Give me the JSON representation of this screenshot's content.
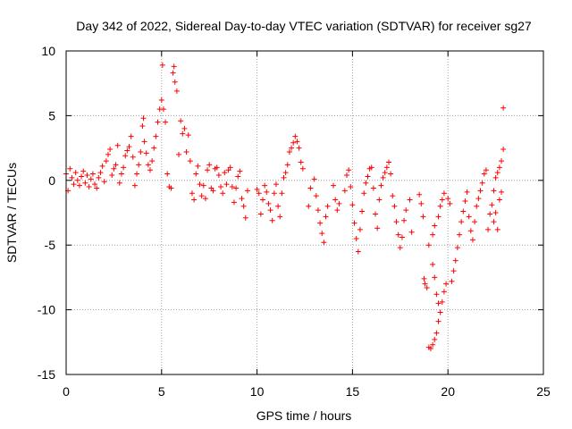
{
  "chart_data": {
    "type": "scatter",
    "title": "Day 342 of 2022, Sidereal Day-to-day VTEC variation (SDTVAR) for receiver sg27",
    "xlabel": "GPS time / hours",
    "ylabel": "SDTVAR / TECUs",
    "xlim": [
      0,
      25
    ],
    "ylim": [
      -15,
      10
    ],
    "xticks": [
      0,
      5,
      10,
      15,
      20,
      25
    ],
    "yticks": [
      -15,
      -10,
      -5,
      0,
      5,
      10
    ],
    "xtick_labels": [
      "0",
      "5",
      "10",
      "15",
      "20",
      "25"
    ],
    "ytick_labels": [
      "-15",
      "-10",
      "-5",
      "0",
      "5",
      "10"
    ],
    "grid": true,
    "marker": "+",
    "color": "#ff0000",
    "series": [
      {
        "name": "SDTVAR",
        "points": [
          [
            0.0,
            0.5
          ],
          [
            0.1,
            -0.8
          ],
          [
            0.2,
            0.9
          ],
          [
            0.3,
            0.2
          ],
          [
            0.4,
            -0.3
          ],
          [
            0.5,
            0.6
          ],
          [
            0.6,
            0.0
          ],
          [
            0.7,
            -0.4
          ],
          [
            0.8,
            0.3
          ],
          [
            0.9,
            0.7
          ],
          [
            1.0,
            -0.2
          ],
          [
            1.1,
            0.4
          ],
          [
            1.2,
            -0.5
          ],
          [
            1.3,
            0.1
          ],
          [
            1.4,
            0.5
          ],
          [
            1.5,
            -0.3
          ],
          [
            1.6,
            -0.6
          ],
          [
            1.7,
            0.2
          ],
          [
            1.8,
            0.6
          ],
          [
            1.9,
            1.1
          ],
          [
            2.0,
            -0.1
          ],
          [
            2.1,
            1.5
          ],
          [
            2.2,
            2.0
          ],
          [
            2.3,
            2.4
          ],
          [
            2.4,
            0.4
          ],
          [
            2.5,
            0.9
          ],
          [
            2.6,
            1.2
          ],
          [
            2.7,
            2.7
          ],
          [
            2.8,
            -0.2
          ],
          [
            2.9,
            0.5
          ],
          [
            3.0,
            1.0
          ],
          [
            3.1,
            1.9
          ],
          [
            3.2,
            2.3
          ],
          [
            3.3,
            2.6
          ],
          [
            3.4,
            3.4
          ],
          [
            3.5,
            1.8
          ],
          [
            3.6,
            -0.4
          ],
          [
            3.7,
            0.5
          ],
          [
            3.8,
            1.2
          ],
          [
            3.9,
            2.2
          ],
          [
            4.0,
            4.2
          ],
          [
            4.05,
            4.8
          ],
          [
            4.1,
            3.0
          ],
          [
            4.2,
            2.1
          ],
          [
            4.3,
            1.2
          ],
          [
            4.4,
            0.8
          ],
          [
            4.5,
            1.5
          ],
          [
            4.6,
            2.5
          ],
          [
            4.7,
            3.4
          ],
          [
            4.8,
            4.5
          ],
          [
            4.9,
            5.5
          ],
          [
            5.0,
            6.2
          ],
          [
            5.05,
            8.9
          ],
          [
            5.1,
            5.5
          ],
          [
            5.2,
            4.5
          ],
          [
            5.3,
            0.5
          ],
          [
            5.4,
            -0.5
          ],
          [
            5.5,
            -0.6
          ],
          [
            5.6,
            8.3
          ],
          [
            5.65,
            8.8
          ],
          [
            5.7,
            7.6
          ],
          [
            5.8,
            6.9
          ],
          [
            5.9,
            2.0
          ],
          [
            6.0,
            4.6
          ],
          [
            6.1,
            3.6
          ],
          [
            6.2,
            4.0
          ],
          [
            6.3,
            2.2
          ],
          [
            6.4,
            3.5
          ],
          [
            6.5,
            1.5
          ],
          [
            6.6,
            -1.0
          ],
          [
            6.7,
            -1.5
          ],
          [
            6.8,
            0.5
          ],
          [
            6.9,
            1.1
          ],
          [
            7.0,
            -0.3
          ],
          [
            7.1,
            -1.2
          ],
          [
            7.2,
            -0.4
          ],
          [
            7.3,
            -1.4
          ],
          [
            7.4,
            0.8
          ],
          [
            7.5,
            1.2
          ],
          [
            7.6,
            -0.6
          ],
          [
            7.7,
            -0.8
          ],
          [
            7.8,
            0.9
          ],
          [
            7.9,
            1.0
          ],
          [
            8.0,
            0.4
          ],
          [
            8.1,
            -0.5
          ],
          [
            8.2,
            -1.0
          ],
          [
            8.3,
            0.6
          ],
          [
            8.4,
            -0.3
          ],
          [
            8.5,
            0.8
          ],
          [
            8.6,
            1.0
          ],
          [
            8.7,
            -0.5
          ],
          [
            8.8,
            -1.7
          ],
          [
            8.9,
            -0.6
          ],
          [
            9.0,
            0.3
          ],
          [
            9.1,
            0.7
          ],
          [
            9.2,
            -1.4
          ],
          [
            9.3,
            -2.0
          ],
          [
            9.4,
            -2.9
          ],
          [
            9.5,
            -0.8
          ],
          [
            10.0,
            -0.7
          ],
          [
            10.1,
            -1.0
          ],
          [
            10.2,
            -2.6
          ],
          [
            10.3,
            -1.5
          ],
          [
            10.4,
            -0.4
          ],
          [
            10.5,
            -0.9
          ],
          [
            10.6,
            -1.8
          ],
          [
            10.7,
            -2.3
          ],
          [
            10.8,
            -3.1
          ],
          [
            10.9,
            -1.0
          ],
          [
            11.0,
            -0.3
          ],
          [
            11.1,
            -2.0
          ],
          [
            11.2,
            -2.8
          ],
          [
            11.3,
            -1.0
          ],
          [
            11.4,
            0.2
          ],
          [
            11.5,
            0.6
          ],
          [
            11.6,
            1.2
          ],
          [
            11.7,
            2.2
          ],
          [
            11.8,
            2.5
          ],
          [
            11.9,
            2.9
          ],
          [
            12.0,
            3.4
          ],
          [
            12.1,
            3.0
          ],
          [
            12.2,
            2.5
          ],
          [
            12.3,
            1.4
          ],
          [
            12.4,
            0.9
          ],
          [
            12.7,
            -2.0
          ],
          [
            12.8,
            -0.6
          ],
          [
            13.0,
            0.1
          ],
          [
            13.1,
            -1.2
          ],
          [
            13.2,
            -2.3
          ],
          [
            13.3,
            -3.3
          ],
          [
            13.4,
            -4.1
          ],
          [
            13.5,
            -4.8
          ],
          [
            13.6,
            -2.8
          ],
          [
            13.7,
            -2.0
          ],
          [
            14.0,
            -0.4
          ],
          [
            14.1,
            -1.5
          ],
          [
            14.2,
            -2.3
          ],
          [
            14.3,
            -1.8
          ],
          [
            14.6,
            -0.8
          ],
          [
            14.7,
            0.4
          ],
          [
            14.8,
            0.8
          ],
          [
            14.9,
            -0.5
          ],
          [
            15.0,
            -1.9
          ],
          [
            15.1,
            -3.3
          ],
          [
            15.2,
            -4.5
          ],
          [
            15.3,
            -5.5
          ],
          [
            15.4,
            -3.8
          ],
          [
            15.5,
            -2.4
          ],
          [
            15.6,
            -1.0
          ],
          [
            15.7,
            -0.2
          ],
          [
            15.8,
            0.3
          ],
          [
            15.9,
            0.9
          ],
          [
            16.0,
            1.0
          ],
          [
            16.1,
            -0.6
          ],
          [
            16.2,
            -2.6
          ],
          [
            16.3,
            -3.7
          ],
          [
            16.4,
            -1.5
          ],
          [
            16.5,
            -0.4
          ],
          [
            16.6,
            0.2
          ],
          [
            16.7,
            0.6
          ],
          [
            16.8,
            1.0
          ],
          [
            16.9,
            1.4
          ],
          [
            17.0,
            0.5
          ],
          [
            17.1,
            -1.2
          ],
          [
            17.2,
            -2.0
          ],
          [
            17.3,
            -3.2
          ],
          [
            17.4,
            -4.2
          ],
          [
            17.5,
            -5.2
          ],
          [
            17.6,
            -4.4
          ],
          [
            17.7,
            -3.1
          ],
          [
            17.8,
            -2.3
          ],
          [
            18.0,
            -1.5
          ],
          [
            18.1,
            -4.0
          ],
          [
            18.5,
            -1.1
          ],
          [
            18.6,
            -1.8
          ],
          [
            18.7,
            -2.8
          ],
          [
            18.75,
            -7.6
          ],
          [
            18.8,
            -8.0
          ],
          [
            18.9,
            -8.3
          ],
          [
            19.0,
            -12.9
          ],
          [
            19.1,
            -13.0
          ],
          [
            19.2,
            -12.7
          ],
          [
            19.3,
            -12.3
          ],
          [
            19.4,
            -11.8
          ],
          [
            19.5,
            -10.9
          ],
          [
            19.6,
            -10.2
          ],
          [
            19.7,
            -9.4
          ],
          [
            19.8,
            -8.6
          ],
          [
            19.9,
            -8.0
          ],
          [
            19.2,
            -6.5
          ],
          [
            19.3,
            -7.5
          ],
          [
            19.4,
            -8.8
          ],
          [
            19.5,
            -9.5
          ],
          [
            19.0,
            -5.0
          ],
          [
            19.2,
            -4.2
          ],
          [
            19.3,
            -3.5
          ],
          [
            19.5,
            -2.8
          ],
          [
            19.6,
            -2.0
          ],
          [
            19.7,
            -1.5
          ],
          [
            19.8,
            -1.0
          ],
          [
            20.0,
            -1.4
          ],
          [
            20.1,
            -1.8
          ],
          [
            20.2,
            -7.8
          ],
          [
            20.3,
            -7.0
          ],
          [
            20.4,
            -6.2
          ],
          [
            20.5,
            -5.2
          ],
          [
            20.6,
            -4.2
          ],
          [
            20.7,
            -3.2
          ],
          [
            20.8,
            -2.4
          ],
          [
            20.9,
            -1.6
          ],
          [
            21.0,
            -0.9
          ],
          [
            21.1,
            -2.8
          ],
          [
            21.2,
            -3.9
          ],
          [
            21.3,
            -4.6
          ],
          [
            21.4,
            -3.2
          ],
          [
            21.5,
            -2.0
          ],
          [
            21.6,
            -1.4
          ],
          [
            21.7,
            -0.8
          ],
          [
            21.8,
            -0.2
          ],
          [
            21.9,
            0.5
          ],
          [
            22.0,
            0.8
          ],
          [
            22.1,
            -3.8
          ],
          [
            22.2,
            -2.6
          ],
          [
            22.3,
            -1.9
          ],
          [
            22.4,
            -0.8
          ],
          [
            22.5,
            0.2
          ],
          [
            22.6,
            0.6
          ],
          [
            22.7,
            1.0
          ],
          [
            22.8,
            1.5
          ],
          [
            22.4,
            -3.2
          ],
          [
            22.5,
            -2.5
          ],
          [
            22.6,
            -3.8
          ],
          [
            22.7,
            -1.5
          ],
          [
            22.8,
            -0.9
          ],
          [
            22.9,
            2.4
          ],
          [
            22.9,
            5.6
          ]
        ]
      }
    ]
  }
}
